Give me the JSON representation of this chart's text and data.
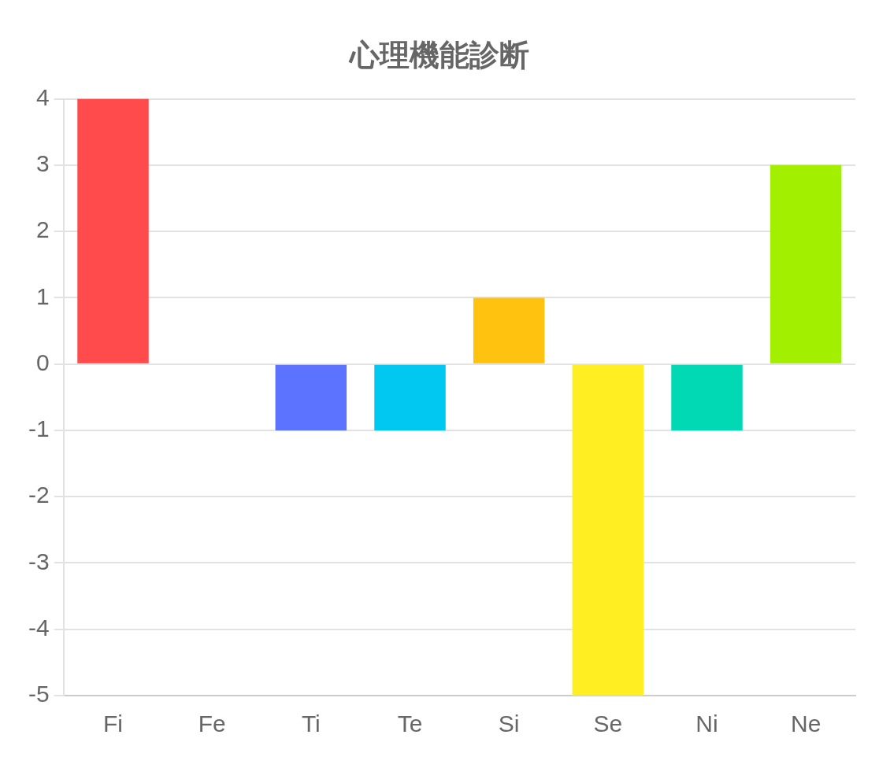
{
  "chart_data": {
    "type": "bar",
    "title": "心理機能診断",
    "categories": [
      "Fi",
      "Fe",
      "Ti",
      "Te",
      "Si",
      "Se",
      "Ni",
      "Ne"
    ],
    "values": [
      4,
      0,
      -1,
      -1,
      1,
      -5,
      -1,
      3
    ],
    "colors": [
      "#ff4b4b",
      "#ff8c3c",
      "#5b73ff",
      "#00c8f0",
      "#ffc30f",
      "#ffee22",
      "#00d9b4",
      "#a2f000"
    ],
    "ylim": [
      -5,
      4
    ],
    "yticks": [
      -5,
      -4,
      -3,
      -2,
      -1,
      0,
      1,
      2,
      3,
      4
    ],
    "grid": "y",
    "legend": false
  }
}
